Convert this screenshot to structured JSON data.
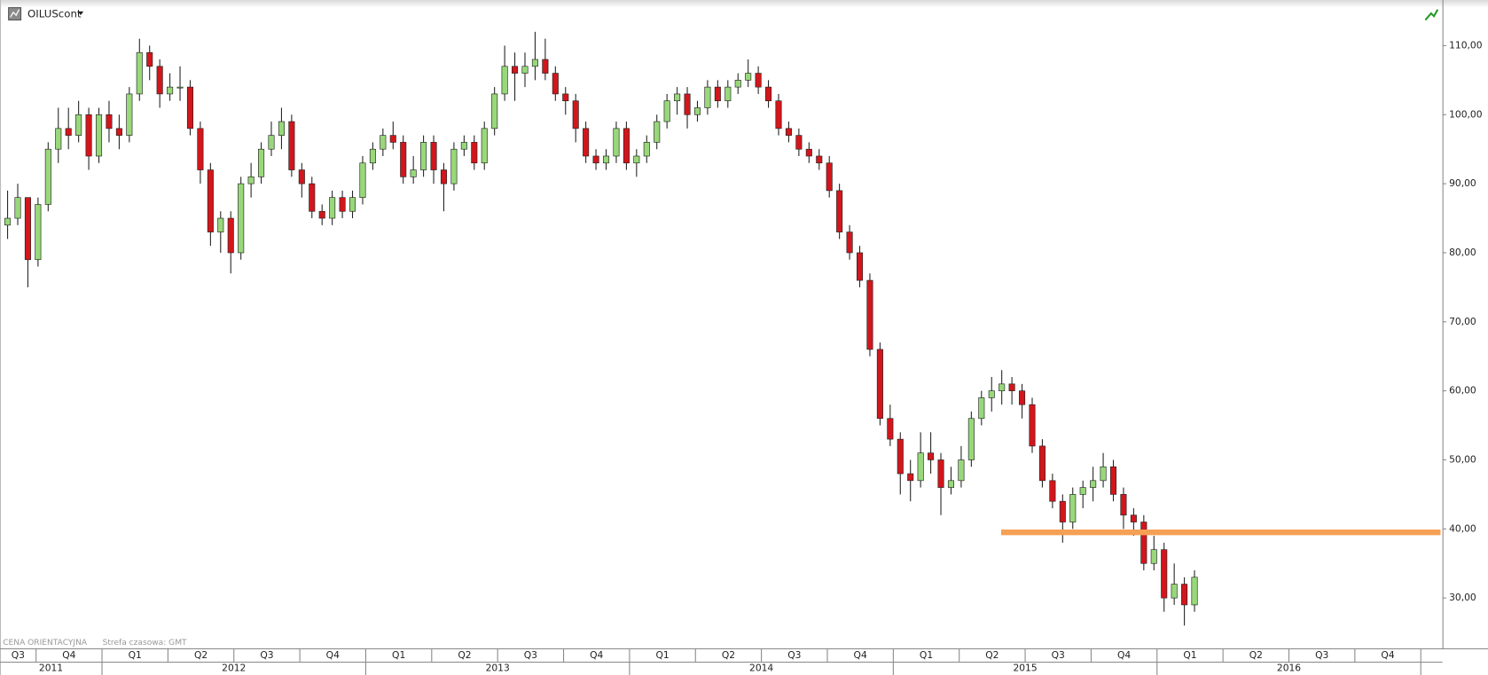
{
  "chart_data": {
    "type": "candlestick",
    "title": "OILUScont",
    "footer_left": "CENA ORIENTACYJNA",
    "footer_right": "Strefa czasowa: GMT",
    "up_color": "#98d87a",
    "down_color": "#d2161c",
    "ylim": [
      22.7,
      116.6
    ],
    "yticks": [
      {
        "value": 30,
        "label": "30,00"
      },
      {
        "value": 40,
        "label": "40,00"
      },
      {
        "value": 50,
        "label": "50,00"
      },
      {
        "value": 60,
        "label": "60,00"
      },
      {
        "value": 70,
        "label": "70,00"
      },
      {
        "value": 80,
        "label": "80,00"
      },
      {
        "value": 90,
        "label": "90,00"
      },
      {
        "value": 100,
        "label": "100,00"
      },
      {
        "value": 110,
        "label": "110,00"
      }
    ],
    "hline": {
      "value": 39.5,
      "color": "#f5a055"
    },
    "years": [
      {
        "label": "2011",
        "quarters": [
          "Q3",
          "Q4"
        ]
      },
      {
        "label": "2012",
        "quarters": [
          "Q1",
          "Q2",
          "Q3",
          "Q4"
        ]
      },
      {
        "label": "2013",
        "quarters": [
          "Q1",
          "Q2",
          "Q3",
          "Q4"
        ]
      },
      {
        "label": "2014",
        "quarters": [
          "Q1",
          "Q2",
          "Q3",
          "Q4"
        ]
      },
      {
        "label": "2015",
        "quarters": [
          "Q1",
          "Q2",
          "Q3",
          "Q4"
        ]
      },
      {
        "label": "2016",
        "quarters": [
          "Q1",
          "Q2",
          "Q3",
          "Q4"
        ]
      }
    ],
    "candles": [
      [
        84,
        89,
        82,
        85
      ],
      [
        85,
        90,
        84,
        88
      ],
      [
        88,
        88,
        75,
        79
      ],
      [
        79,
        88,
        78,
        87
      ],
      [
        87,
        96,
        86,
        95
      ],
      [
        95,
        101,
        93,
        98
      ],
      [
        98,
        101,
        95,
        97
      ],
      [
        97,
        102,
        96,
        100
      ],
      [
        100,
        101,
        92,
        94
      ],
      [
        94,
        101,
        93,
        100
      ],
      [
        100,
        102,
        96,
        98
      ],
      [
        98,
        100,
        95,
        97
      ],
      [
        97,
        104,
        96,
        103
      ],
      [
        103,
        111,
        102,
        109
      ],
      [
        109,
        110,
        105,
        107
      ],
      [
        107,
        108,
        101,
        103
      ],
      [
        103,
        106,
        102,
        104
      ],
      [
        104,
        107,
        102,
        104
      ],
      [
        104,
        105,
        97,
        98
      ],
      [
        98,
        99,
        90,
        92
      ],
      [
        92,
        93,
        81,
        83
      ],
      [
        83,
        86,
        80,
        85
      ],
      [
        85,
        86,
        77,
        80
      ],
      [
        80,
        91,
        79,
        90
      ],
      [
        90,
        93,
        88,
        91
      ],
      [
        91,
        96,
        90,
        95
      ],
      [
        95,
        99,
        94,
        97
      ],
      [
        97,
        101,
        95,
        99
      ],
      [
        99,
        100,
        91,
        92
      ],
      [
        92,
        93,
        88,
        90
      ],
      [
        90,
        91,
        85,
        86
      ],
      [
        86,
        87,
        84,
        85
      ],
      [
        85,
        89,
        84,
        88
      ],
      [
        88,
        89,
        85,
        86
      ],
      [
        86,
        89,
        85,
        88
      ],
      [
        88,
        94,
        87,
        93
      ],
      [
        93,
        96,
        92,
        95
      ],
      [
        95,
        98,
        94,
        97
      ],
      [
        97,
        99,
        95,
        96
      ],
      [
        96,
        97,
        90,
        91
      ],
      [
        91,
        94,
        90,
        92
      ],
      [
        92,
        97,
        91,
        96
      ],
      [
        96,
        97,
        90,
        92
      ],
      [
        92,
        93,
        86,
        90
      ],
      [
        90,
        96,
        89,
        95
      ],
      [
        95,
        97,
        94,
        96
      ],
      [
        96,
        97,
        92,
        93
      ],
      [
        93,
        99,
        92,
        98
      ],
      [
        98,
        104,
        97,
        103
      ],
      [
        103,
        110,
        102,
        107
      ],
      [
        107,
        109,
        102,
        106
      ],
      [
        106,
        109,
        104,
        107
      ],
      [
        107,
        112,
        105,
        108
      ],
      [
        108,
        111,
        105,
        106
      ],
      [
        106,
        107,
        102,
        103
      ],
      [
        103,
        104,
        100,
        102
      ],
      [
        102,
        103,
        96,
        98
      ],
      [
        98,
        99,
        93,
        94
      ],
      [
        94,
        95,
        92,
        93
      ],
      [
        93,
        95,
        92,
        94
      ],
      [
        94,
        99,
        93,
        98
      ],
      [
        98,
        99,
        92,
        93
      ],
      [
        93,
        95,
        91,
        94
      ],
      [
        94,
        97,
        93,
        96
      ],
      [
        96,
        100,
        95,
        99
      ],
      [
        99,
        103,
        98,
        102
      ],
      [
        102,
        104,
        100,
        103
      ],
      [
        103,
        104,
        98,
        100
      ],
      [
        100,
        102,
        99,
        101
      ],
      [
        101,
        105,
        100,
        104
      ],
      [
        104,
        105,
        101,
        102
      ],
      [
        102,
        105,
        101,
        104
      ],
      [
        104,
        106,
        103,
        105
      ],
      [
        105,
        108,
        104,
        106
      ],
      [
        106,
        107,
        103,
        104
      ],
      [
        104,
        105,
        101,
        102
      ],
      [
        102,
        103,
        97,
        98
      ],
      [
        98,
        99,
        96,
        97
      ],
      [
        97,
        98,
        94,
        95
      ],
      [
        95,
        96,
        93,
        94
      ],
      [
        94,
        95,
        92,
        93
      ],
      [
        93,
        94,
        88,
        89
      ],
      [
        89,
        90,
        82,
        83
      ],
      [
        83,
        84,
        79,
        80
      ],
      [
        80,
        81,
        75,
        76
      ],
      [
        76,
        77,
        65,
        66
      ],
      [
        66,
        67,
        55,
        56
      ],
      [
        56,
        58,
        52,
        53
      ],
      [
        53,
        54,
        45,
        48
      ],
      [
        48,
        50,
        44,
        47
      ],
      [
        47,
        54,
        46,
        51
      ],
      [
        51,
        54,
        48,
        50
      ],
      [
        50,
        51,
        42,
        46
      ],
      [
        46,
        49,
        45,
        47
      ],
      [
        47,
        52,
        46,
        50
      ],
      [
        50,
        57,
        49,
        56
      ],
      [
        56,
        60,
        55,
        59
      ],
      [
        59,
        62,
        57,
        60
      ],
      [
        60,
        63,
        58,
        61
      ],
      [
        61,
        62,
        58,
        60
      ],
      [
        60,
        61,
        56,
        58
      ],
      [
        58,
        59,
        51,
        52
      ],
      [
        52,
        53,
        46,
        47
      ],
      [
        47,
        48,
        43,
        44
      ],
      [
        44,
        45,
        38,
        41
      ],
      [
        41,
        46,
        40,
        45
      ],
      [
        45,
        47,
        43,
        46
      ],
      [
        46,
        49,
        44,
        47
      ],
      [
        47,
        51,
        46,
        49
      ],
      [
        49,
        50,
        44,
        45
      ],
      [
        45,
        46,
        40,
        42
      ],
      [
        42,
        43,
        39,
        41
      ],
      [
        41,
        42,
        34,
        35
      ],
      [
        35,
        39,
        34,
        37
      ],
      [
        37,
        38,
        28,
        30
      ],
      [
        30,
        35,
        29,
        32
      ],
      [
        32,
        33,
        26,
        29
      ],
      [
        29,
        34,
        28,
        33
      ]
    ]
  }
}
